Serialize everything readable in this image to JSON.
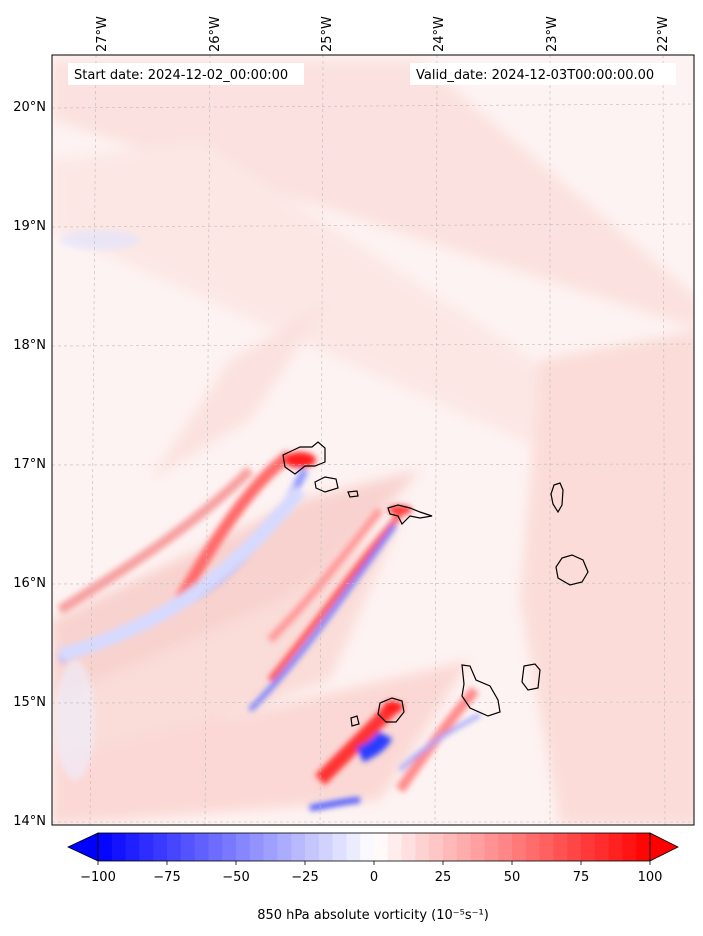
{
  "header": {
    "start_label": "Start date: 2024-12-02_00:00:00",
    "valid_label": "Valid_date: 2024-12-03T00:00:00.00"
  },
  "axes": {
    "lon_ticks": [
      "27°W",
      "26°W",
      "25°W",
      "24°W",
      "23°W",
      "22°W"
    ],
    "lat_ticks": [
      "20°N",
      "19°N",
      "18°N",
      "17°N",
      "16°N",
      "15°N",
      "14°N"
    ]
  },
  "colorbar": {
    "label": "850 hPa absolute vorticity (10⁻⁵s⁻¹)",
    "ticks": [
      "−100",
      "−75",
      "−50",
      "−25",
      "0",
      "25",
      "50",
      "75",
      "100"
    ],
    "min": -100,
    "max": 100,
    "low_color": "#0000ff",
    "mid_color": "#ffffff",
    "high_color": "#ff0000"
  },
  "colors": {
    "field_background": "#fdf3f2",
    "positive_light": "#fbd9d6",
    "positive_strong": "#ff2020",
    "negative_strong": "#2030ff",
    "negative_light": "#c8ccff",
    "coastline": "#000000",
    "grid": "#bbbbbb"
  }
}
